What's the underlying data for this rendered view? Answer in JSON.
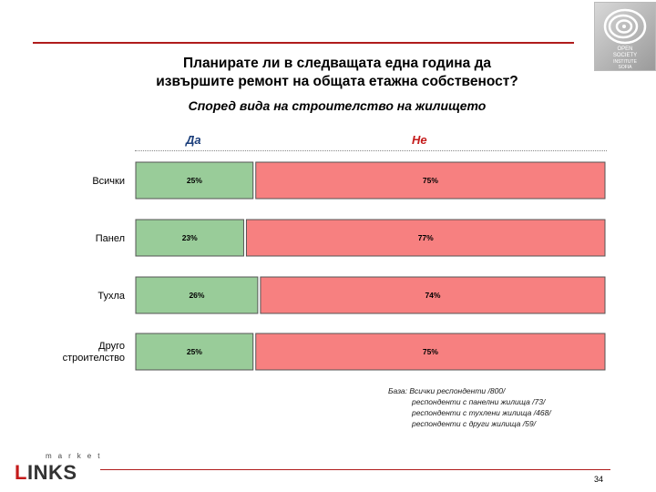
{
  "header": {
    "title_line1": "Планирате ли в следващата една година да",
    "title_line2": "извършите ремонт на общата етажна собственост?",
    "subtitle": "Според вида на строителство на жилището"
  },
  "legend": {
    "yes": "Да",
    "no": "Не"
  },
  "chart_data": {
    "type": "bar",
    "orientation": "horizontal",
    "stacked": true,
    "title": "Планирате ли в следващата една година да извършите ремонт на общата етажна собственост?",
    "subtitle": "Според вида на строителство на жилището",
    "categories": [
      "Всички",
      "Панел",
      "Тухла",
      "Друго строителство"
    ],
    "series": [
      {
        "name": "Да",
        "values": [
          25,
          23,
          26,
          25
        ],
        "labels": [
          "25%",
          "23%",
          "26%",
          "25%"
        ],
        "color": "#99cc99"
      },
      {
        "name": "Не",
        "values": [
          75,
          77,
          74,
          75
        ],
        "labels": [
          "75%",
          "77%",
          "74%",
          "75%"
        ],
        "color": "#f78080"
      }
    ],
    "unit": "%",
    "xlim": [
      0,
      100
    ],
    "legend_position": "top"
  },
  "base_note": {
    "line1": "База: Всички респонденти /800/",
    "line2": "респонденти с панелни жилища /73/",
    "line3": "респонденти с тухлени жилища /468/",
    "line4": "респонденти с други жилища /59/"
  },
  "footer": {
    "page_number": "34",
    "brand_small": "market",
    "brand_big_first": "L",
    "brand_big_rest": "INKS"
  },
  "logo": {
    "line1": "OPEN",
    "line2": "SOCIETY",
    "line3": "INSTITUTE",
    "line4": "SOFIA"
  }
}
